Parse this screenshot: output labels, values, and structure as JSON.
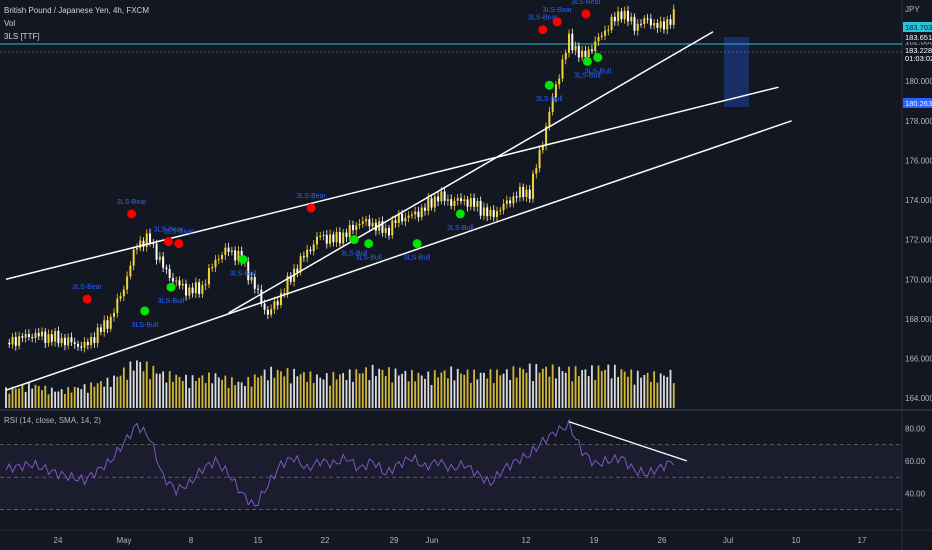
{
  "legend": {
    "symbol": "British Pound / Japanese Yen, 4h, FXCM",
    "vol": "Vol",
    "indicator": "3LS [TTF]"
  },
  "rsi_legend": "RSI (14, close, SMA, 14, 2)",
  "price_axis": {
    "currency": "JPY",
    "ticks": [
      "182.000",
      "180.000",
      "178.000",
      "176.000",
      "174.000",
      "172.000",
      "170.000",
      "168.000",
      "166.000",
      "164.000"
    ],
    "labels": [
      {
        "text": "183.703",
        "color": "#26c6da"
      },
      {
        "text": "183.651",
        "color": "#ffffff"
      },
      {
        "text": "183.228",
        "color": "#ffffff"
      },
      {
        "text": "01:03:02",
        "color": "#ffffff"
      },
      {
        "text": "180.263",
        "color": "#2962ff"
      }
    ]
  },
  "rsi_axis": {
    "ticks": [
      "80.00",
      "60.00",
      "40.00"
    ]
  },
  "time_axis": [
    "24",
    "May",
    "8",
    "15",
    "22",
    "29",
    "Jun",
    "12",
    "19",
    "26",
    "Jul",
    "10",
    "17"
  ],
  "colors": {
    "bull": "#f2d43a",
    "bear": "#ffffff",
    "bear_dot": "#ff0000",
    "bull_dot": "#00e600",
    "label": "#2962ff",
    "rsi": "#7e57c2",
    "hline": "#26c6da"
  },
  "chart_data": {
    "type": "candlestick",
    "title": "British Pound / Japanese Yen, 4h, FXCM",
    "y_range": [
      163.5,
      183.9
    ],
    "x_start_day": 20,
    "x_end_day": 72,
    "close_path": [
      [
        20,
        166.8
      ],
      [
        22,
        167.2
      ],
      [
        24,
        167.0
      ],
      [
        26,
        166.6
      ],
      [
        28,
        168.0
      ],
      [
        29,
        169.6
      ],
      [
        30,
        171.8
      ],
      [
        31,
        172.0
      ],
      [
        32,
        170.6
      ],
      [
        33,
        169.8
      ],
      [
        34,
        169.4
      ],
      [
        35,
        169.6
      ],
      [
        36,
        171.0
      ],
      [
        37,
        171.5
      ],
      [
        38,
        171.0
      ],
      [
        39,
        169.6
      ],
      [
        40,
        168.2
      ],
      [
        41,
        169.2
      ],
      [
        42,
        170.4
      ],
      [
        43,
        171.4
      ],
      [
        44,
        172.2
      ],
      [
        45,
        172.0
      ],
      [
        46,
        172.3
      ],
      [
        47,
        172.9
      ],
      [
        48,
        172.8
      ],
      [
        49,
        172.4
      ],
      [
        50,
        173.1
      ],
      [
        51,
        173.2
      ],
      [
        52,
        173.6
      ],
      [
        53,
        174.2
      ],
      [
        54,
        173.9
      ],
      [
        55,
        174.0
      ],
      [
        56,
        173.7
      ],
      [
        57,
        173.2
      ],
      [
        58,
        173.7
      ],
      [
        59,
        174.3
      ],
      [
        60,
        174.4
      ],
      [
        61,
        177.0
      ],
      [
        62,
        179.8
      ],
      [
        63,
        182.1
      ],
      [
        64,
        181.2
      ],
      [
        65,
        181.9
      ],
      [
        66,
        182.8
      ],
      [
        67,
        183.5
      ],
      [
        68,
        182.8
      ],
      [
        69,
        183.1
      ],
      [
        70,
        182.7
      ],
      [
        71,
        183.3
      ]
    ],
    "volume_max": 5200,
    "volume": [
      [
        20,
        1200
      ],
      [
        22,
        1500
      ],
      [
        24,
        1100
      ],
      [
        26,
        1400
      ],
      [
        28,
        1800
      ],
      [
        30,
        3000
      ],
      [
        32,
        2200
      ],
      [
        34,
        1900
      ],
      [
        36,
        2100
      ],
      [
        38,
        1600
      ],
      [
        40,
        2400
      ],
      [
        42,
        2300
      ],
      [
        44,
        2000
      ],
      [
        46,
        2200
      ],
      [
        48,
        2500
      ],
      [
        50,
        2300
      ],
      [
        52,
        2100
      ],
      [
        54,
        2400
      ],
      [
        56,
        2200
      ],
      [
        58,
        2300
      ],
      [
        60,
        2600
      ],
      [
        62,
        2500
      ],
      [
        64,
        2400
      ],
      [
        66,
        2600
      ],
      [
        68,
        2200
      ],
      [
        70,
        2100
      ],
      [
        71,
        2300
      ]
    ],
    "markers": [
      {
        "label": "3LS-Bear",
        "type": "bear",
        "x": 26.2,
        "y": 169.0
      },
      {
        "label": "3LS-Bull",
        "type": "bull",
        "x": 30.6,
        "y": 168.4
      },
      {
        "label": "3LS-Bear",
        "type": "bear",
        "x": 29.6,
        "y": 173.3
      },
      {
        "label": "3LS-Bear",
        "type": "bear",
        "x": 32.4,
        "y": 171.9
      },
      {
        "label": "3LS-Bear",
        "type": "bear",
        "x": 33.2,
        "y": 171.8
      },
      {
        "label": "3LS-Bull",
        "type": "bull",
        "x": 32.6,
        "y": 169.6
      },
      {
        "label": "3LS-Bull",
        "type": "bull",
        "x": 38.1,
        "y": 171.0
      },
      {
        "label": "3LS-Bear",
        "type": "bear",
        "x": 43.3,
        "y": 173.6
      },
      {
        "label": "3LS-Bull",
        "type": "bull",
        "x": 46.6,
        "y": 172.0
      },
      {
        "label": "3LS-Bull",
        "type": "bull",
        "x": 47.7,
        "y": 171.8
      },
      {
        "label": "3LS-Bull",
        "type": "bull",
        "x": 51.4,
        "y": 171.8
      },
      {
        "label": "3LS-Bull",
        "type": "bull",
        "x": 54.7,
        "y": 173.3
      },
      {
        "label": "3LS-Bull",
        "type": "bull",
        "x": 61.5,
        "y": 179.8
      },
      {
        "label": "3LS-Bear",
        "type": "bear",
        "x": 61.0,
        "y": 182.6
      },
      {
        "label": "3LS-Bear",
        "type": "bear",
        "x": 62.1,
        "y": 183.0
      },
      {
        "label": "3LS-Bear",
        "type": "bear",
        "x": 64.3,
        "y": 183.4
      },
      {
        "label": "3LS-Bull",
        "type": "bull",
        "x": 64.4,
        "y": 181.0
      },
      {
        "label": "3LS-Bull",
        "type": "bull",
        "x": 65.2,
        "y": 181.2
      }
    ],
    "trendlines": [
      {
        "from": [
          20,
          170.0
        ],
        "to": [
          79,
          179.7
        ]
      },
      {
        "from": [
          20,
          164.4
        ],
        "to": [
          80,
          178.0
        ]
      },
      {
        "from": [
          37,
          168.3
        ],
        "to": [
          74,
          182.5
        ]
      }
    ],
    "rsi": {
      "range": [
        20,
        90
      ],
      "levels": [
        70,
        50,
        30
      ],
      "path": [
        [
          20,
          55
        ],
        [
          22,
          58
        ],
        [
          24,
          52
        ],
        [
          26,
          48
        ],
        [
          28,
          60
        ],
        [
          30,
          82
        ],
        [
          31,
          74
        ],
        [
          32,
          50
        ],
        [
          33,
          42
        ],
        [
          34,
          46
        ],
        [
          35,
          55
        ],
        [
          36,
          60
        ],
        [
          37,
          52
        ],
        [
          38,
          40
        ],
        [
          39,
          32
        ],
        [
          40,
          45
        ],
        [
          41,
          58
        ],
        [
          42,
          62
        ],
        [
          43,
          55
        ],
        [
          44,
          60
        ],
        [
          45,
          58
        ],
        [
          46,
          62
        ],
        [
          47,
          55
        ],
        [
          48,
          60
        ],
        [
          49,
          52
        ],
        [
          50,
          58
        ],
        [
          51,
          62
        ],
        [
          52,
          56
        ],
        [
          53,
          60
        ],
        [
          54,
          55
        ],
        [
          55,
          58
        ],
        [
          56,
          52
        ],
        [
          57,
          46
        ],
        [
          58,
          55
        ],
        [
          59,
          60
        ],
        [
          60,
          64
        ],
        [
          61,
          72
        ],
        [
          62,
          78
        ],
        [
          63,
          82
        ],
        [
          64,
          66
        ],
        [
          65,
          58
        ],
        [
          66,
          60
        ],
        [
          67,
          62
        ],
        [
          68,
          54
        ],
        [
          69,
          52
        ],
        [
          70,
          56
        ],
        [
          71,
          60
        ]
      ]
    }
  }
}
